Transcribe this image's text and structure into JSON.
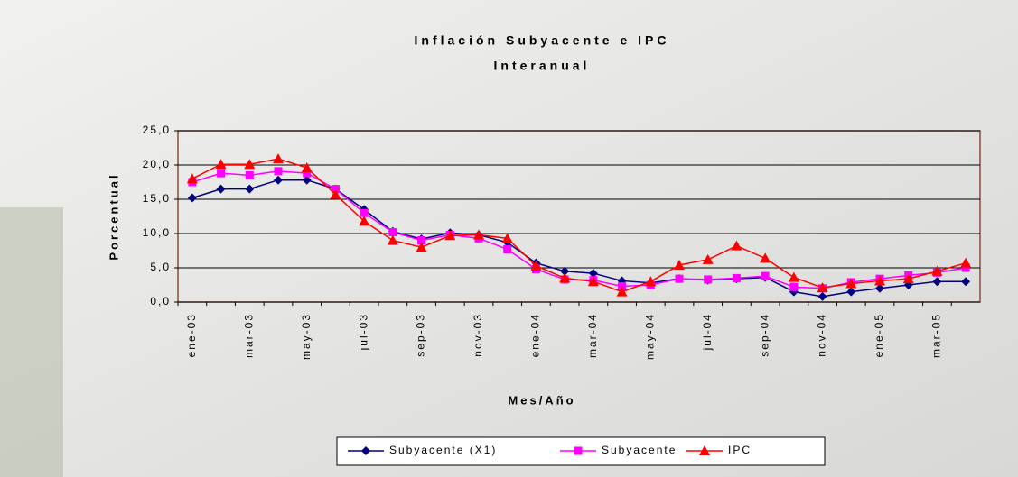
{
  "chart_data": {
    "type": "line",
    "title": "Inflación Subyacente e IPC",
    "subtitle": "Interanual",
    "y_label": "Porcentual",
    "x_label": "Mes/Año",
    "categories": [
      "ene-03",
      null,
      "mar-03",
      null,
      "may-03",
      null,
      "jul-03",
      null,
      "sep-03",
      null,
      "nov-03",
      null,
      "ene-04",
      null,
      "mar-04",
      null,
      "may-04",
      null,
      "jul-04",
      null,
      "sep-04",
      null,
      "nov-04",
      null,
      "ene-05",
      null,
      "mar-05",
      null
    ],
    "series": [
      {
        "name": "Subyacente (X1)",
        "color": "#000080",
        "marker": "diamond",
        "values": [
          15.2,
          16.5,
          16.5,
          17.8,
          17.8,
          16.5,
          13.5,
          10.3,
          9.2,
          10.1,
          9.8,
          8.7,
          5.7,
          4.5,
          4.2,
          3.1,
          2.8,
          3.4,
          3.2,
          3.4,
          3.6,
          1.5,
          0.8,
          1.5,
          2.0,
          2.5,
          3.0,
          3.0
        ]
      },
      {
        "name": "Subyacente",
        "color": "#ff00ff",
        "marker": "square",
        "values": [
          17.5,
          18.8,
          18.5,
          19.1,
          18.8,
          16.5,
          13.0,
          10.2,
          9.0,
          9.8,
          9.3,
          7.7,
          4.8,
          3.3,
          3.2,
          2.3,
          2.5,
          3.4,
          3.3,
          3.5,
          3.8,
          2.2,
          2.0,
          2.9,
          3.4,
          3.9,
          4.3,
          5.0
        ]
      },
      {
        "name": "IPC",
        "color": "#ff0000",
        "marker": "triangle",
        "values": [
          18.0,
          20.1,
          20.1,
          20.9,
          19.6,
          15.7,
          11.8,
          9.0,
          8.0,
          9.7,
          9.8,
          9.3,
          5.3,
          3.5,
          3.0,
          1.5,
          3.0,
          5.4,
          6.2,
          8.2,
          6.4,
          3.6,
          2.1,
          2.7,
          3.1,
          3.4,
          4.5,
          5.7
        ]
      }
    ],
    "ylim": [
      0,
      25
    ],
    "yticks": [
      {
        "value": 0,
        "label": "0,0"
      },
      {
        "value": 5,
        "label": "5,0"
      },
      {
        "value": 10,
        "label": "10,0"
      },
      {
        "value": 15,
        "label": "15,0"
      },
      {
        "value": 20,
        "label": "20,0"
      },
      {
        "value": 25,
        "label": "25,0"
      }
    ],
    "grid": true,
    "legend": "bottom"
  }
}
